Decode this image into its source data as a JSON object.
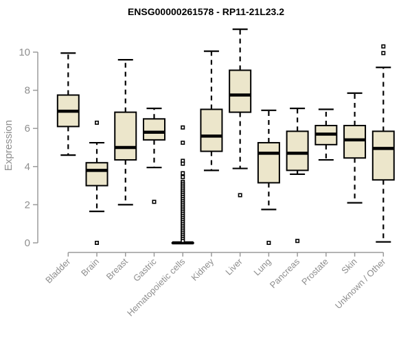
{
  "colors": {
    "background": "#ffffff",
    "box_fill": "#ece6cb",
    "box_border": "#000000",
    "median_line": "#000000",
    "axis_line": "#9a9a9a",
    "axis_text": "#8e8e8e",
    "title_text": "#000000",
    "outlier_fill": "#ffffff"
  },
  "chart_data": {
    "type": "boxplot",
    "title": "ENSG00000261578 - RP11-21L23.2",
    "ylabel": "Expression",
    "xlabel": "",
    "yticks": [
      0,
      2,
      4,
      6,
      8,
      10
    ],
    "ylim": [
      0,
      10
    ],
    "ylim_drawn": [
      -0.05,
      11.3
    ],
    "grid": false,
    "legend": "none",
    "categories": [
      "Bladder",
      "Brain",
      "Breast",
      "Gastric",
      "Hematopoietic cells",
      "Kidney",
      "Liver",
      "Lung",
      "Pancreas",
      "Prostate",
      "Skin",
      "Unknown / Other"
    ],
    "series": [
      {
        "label": "Bladder",
        "whisker_low": 4.6,
        "q1": 6.1,
        "median": 6.9,
        "q3": 7.75,
        "whisker_high": 9.95,
        "outliers": []
      },
      {
        "label": "Brain",
        "whisker_low": 1.65,
        "q1": 3.0,
        "median": 3.8,
        "q3": 4.2,
        "whisker_high": 5.25,
        "outliers": [
          6.3,
          0.0
        ]
      },
      {
        "label": "Breast",
        "whisker_low": 2.0,
        "q1": 4.35,
        "median": 5.0,
        "q3": 6.85,
        "whisker_high": 9.6,
        "outliers": []
      },
      {
        "label": "Gastric",
        "whisker_low": 3.95,
        "q1": 5.4,
        "median": 5.8,
        "q3": 6.5,
        "whisker_high": 7.05,
        "outliers": [
          2.15
        ]
      },
      {
        "label": "Hematopoietic cells",
        "whisker_low": 0.0,
        "q1": 0.0,
        "median": 0.0,
        "q3": 0.0,
        "whisker_high": 0.0,
        "outliers": [
          6.05,
          5.25,
          4.3,
          4.15,
          3.65,
          3.45,
          3.2,
          3.1,
          3.0,
          2.9,
          2.8,
          2.7,
          2.6,
          2.5,
          2.4,
          2.3,
          2.2,
          2.1,
          2.0,
          1.9,
          1.8,
          1.7,
          1.6,
          1.5,
          1.4,
          1.3,
          1.2,
          1.1,
          1.0,
          0.9,
          0.8,
          0.7,
          0.6,
          0.5,
          0.4,
          0.3,
          0.2,
          0.1
        ]
      },
      {
        "label": "Kidney",
        "whisker_low": 3.8,
        "q1": 4.8,
        "median": 5.6,
        "q3": 7.0,
        "whisker_high": 10.05,
        "outliers": []
      },
      {
        "label": "Liver",
        "whisker_low": 3.9,
        "q1": 6.85,
        "median": 7.75,
        "q3": 9.05,
        "whisker_high": 11.2,
        "outliers": [
          2.5
        ]
      },
      {
        "label": "Lung",
        "whisker_low": 1.75,
        "q1": 3.15,
        "median": 4.7,
        "q3": 5.25,
        "whisker_high": 6.95,
        "outliers": [
          0.0
        ]
      },
      {
        "label": "Pancreas",
        "whisker_low": 3.6,
        "q1": 3.8,
        "median": 4.7,
        "q3": 5.85,
        "whisker_high": 7.05,
        "outliers": [
          0.1
        ]
      },
      {
        "label": "Prostate",
        "whisker_low": 4.35,
        "q1": 5.15,
        "median": 5.7,
        "q3": 6.15,
        "whisker_high": 7.0,
        "outliers": []
      },
      {
        "label": "Skin",
        "whisker_low": 2.1,
        "q1": 4.45,
        "median": 5.4,
        "q3": 6.15,
        "whisker_high": 7.85,
        "outliers": []
      },
      {
        "label": "Unknown / Other",
        "whisker_low": 0.05,
        "q1": 3.3,
        "median": 4.95,
        "q3": 5.85,
        "whisker_high": 9.2,
        "outliers": [
          10.3,
          9.95
        ]
      }
    ]
  }
}
